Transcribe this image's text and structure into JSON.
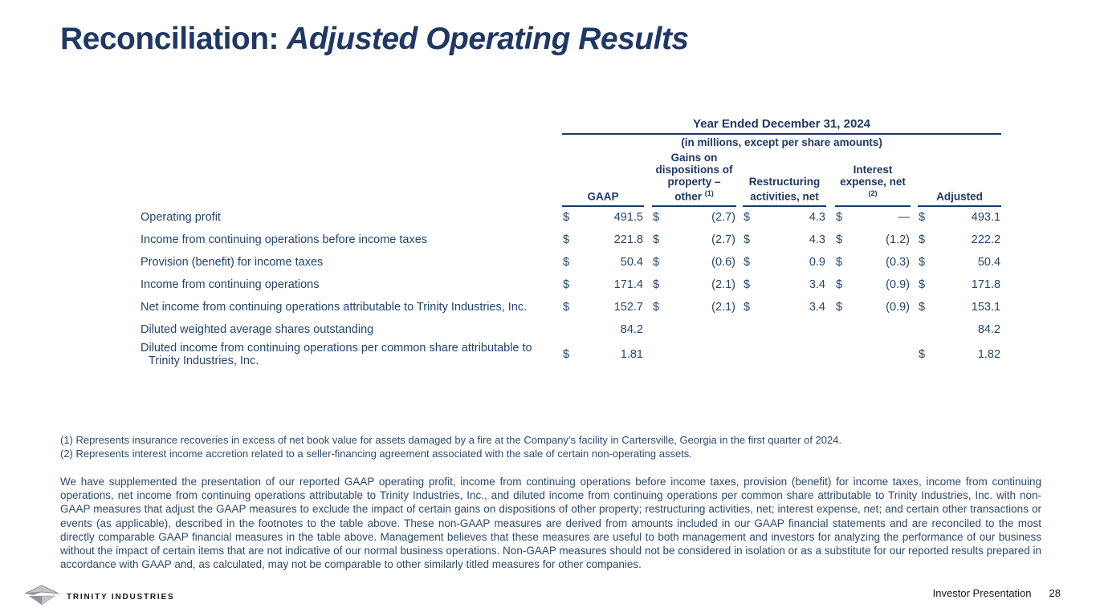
{
  "title": {
    "prefix": "Reconciliation:",
    "emphasis": "Adjusted Operating Results"
  },
  "table": {
    "period_header": "Year Ended December 31, 2024",
    "units_note": "(in millions, except per share amounts)",
    "columns": [
      {
        "label": "GAAP",
        "sup": ""
      },
      {
        "label": "Gains on dispositions of property – other",
        "sup": "(1)"
      },
      {
        "label": "Restructuring activities, net",
        "sup": ""
      },
      {
        "label": "Interest expense, net",
        "sup": "(2)"
      },
      {
        "label": "Adjusted",
        "sup": ""
      }
    ],
    "rows": [
      {
        "label": "Operating profit",
        "cells": [
          {
            "d": "$",
            "v": "491.5"
          },
          {
            "d": "$",
            "v": "(2.7)"
          },
          {
            "d": "$",
            "v": "4.3"
          },
          {
            "d": "$",
            "v": "—"
          },
          {
            "d": "$",
            "v": "493.1"
          }
        ]
      },
      {
        "label": "Income from continuing operations before income taxes",
        "cells": [
          {
            "d": "$",
            "v": "221.8"
          },
          {
            "d": "$",
            "v": "(2.7)"
          },
          {
            "d": "$",
            "v": "4.3"
          },
          {
            "d": "$",
            "v": "(1.2)"
          },
          {
            "d": "$",
            "v": "222.2"
          }
        ]
      },
      {
        "label": "Provision (benefit) for income taxes",
        "cells": [
          {
            "d": "$",
            "v": "50.4"
          },
          {
            "d": "$",
            "v": "(0.6)"
          },
          {
            "d": "$",
            "v": "0.9"
          },
          {
            "d": "$",
            "v": "(0.3)"
          },
          {
            "d": "$",
            "v": "50.4"
          }
        ]
      },
      {
        "label": "Income from continuing operations",
        "cells": [
          {
            "d": "$",
            "v": "171.4"
          },
          {
            "d": "$",
            "v": "(2.1)"
          },
          {
            "d": "$",
            "v": "3.4"
          },
          {
            "d": "$",
            "v": "(0.9)"
          },
          {
            "d": "$",
            "v": "171.8"
          }
        ]
      },
      {
        "label": "Net income from continuing operations attributable to Trinity Industries, Inc.",
        "cells": [
          {
            "d": "$",
            "v": "152.7"
          },
          {
            "d": "$",
            "v": "(2.1)"
          },
          {
            "d": "$",
            "v": "3.4"
          },
          {
            "d": "$",
            "v": "(0.9)"
          },
          {
            "d": "$",
            "v": "153.1"
          }
        ]
      },
      {
        "label": "Diluted weighted average shares outstanding",
        "cells": [
          {
            "d": "",
            "v": "84.2"
          },
          {
            "d": "",
            "v": ""
          },
          {
            "d": "",
            "v": ""
          },
          {
            "d": "",
            "v": ""
          },
          {
            "d": "",
            "v": "84.2"
          }
        ]
      },
      {
        "label": "Diluted income from continuing operations per common share attributable to Trinity Industries, Inc.",
        "cells": [
          {
            "d": "$",
            "v": "1.81"
          },
          {
            "d": "",
            "v": ""
          },
          {
            "d": "",
            "v": ""
          },
          {
            "d": "",
            "v": ""
          },
          {
            "d": "$",
            "v": "1.82"
          }
        ]
      }
    ]
  },
  "footnotes": [
    "(1) Represents insurance recoveries in excess of net book value for assets damaged by a fire at the Company’s facility in Cartersville, Georgia in the first quarter of 2024.",
    "(2) Represents interest income accretion related to a seller-financing agreement associated with the sale of certain non-operating assets."
  ],
  "body_paragraph": "We have supplemented the presentation of our reported GAAP operating profit, income from continuing operations before income taxes, provision (benefit) for income taxes, income from continuing operations, net income from continuing operations attributable to Trinity Industries, Inc., and diluted income from continuing operations per common share attributable to Trinity Industries, Inc. with non-GAAP measures that adjust the GAAP measures to exclude the impact of certain gains on dispositions of other property; restructuring activities, net; interest expense, net; and certain other transactions or events (as applicable), described in the footnotes to the table above. These non-GAAP measures are derived from amounts included in our GAAP financial statements and are reconciled to the most directly comparable GAAP financial measures in the table above. Management believes that these measures are useful to both management and investors for analyzing the performance of our business without the impact of certain items that are not indicative of our normal business operations. Non-GAAP measures should not be considered in isolation or as a substitute for our reported results prepared in accordance with GAAP and, as calculated, may not be comparable to other similarly titled measures for other companies.",
  "footer": {
    "logo_text": "TRINITY INDUSTRIES",
    "label": "Investor Presentation",
    "page": "28"
  },
  "colors": {
    "navy": "#1f3864",
    "body_text": "#2d4a6a",
    "footer_text": "#16181a",
    "logo_gray_dark": "#8f9499",
    "logo_gray_light": "#c2c6c9"
  }
}
